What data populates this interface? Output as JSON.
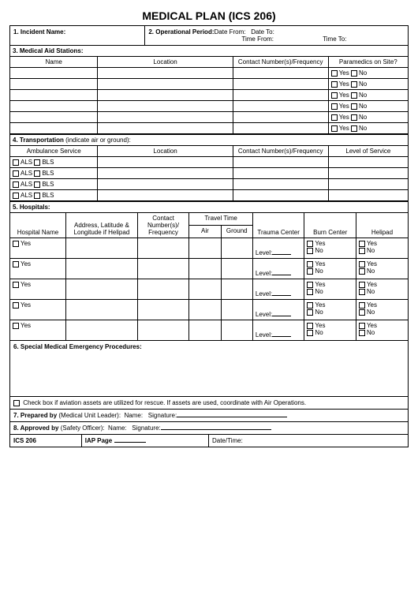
{
  "title": "MEDICAL PLAN (ICS 206)",
  "s1": {
    "label": "1. Incident Name:"
  },
  "s2": {
    "label": "2. Operational Period:",
    "dateFrom": "Date From:",
    "dateTo": "Date To:",
    "timeFrom": "Time From:",
    "timeTo": "Time To:"
  },
  "s3": {
    "label": "3. Medical Aid Stations:",
    "cols": {
      "name": "Name",
      "location": "Location",
      "contact": "Contact Number(s)/Frequency",
      "paramedics": "Paramedics on Site?"
    },
    "yes": "Yes",
    "no": "No",
    "rows": 6
  },
  "s4": {
    "label": "4. Transportation",
    "hint": " (indicate air or ground):",
    "cols": {
      "ambulance": "Ambulance Service",
      "location": "Location",
      "contact": "Contact Number(s)/Frequency",
      "level": "Level of Service"
    },
    "als": "ALS",
    "bls": "BLS",
    "rows": 4
  },
  "s5": {
    "label": "5. Hospitals:",
    "cols": {
      "name": "Hospital Name",
      "address": "Address, Latitude & Longitude if Helipad",
      "contact": "Contact Number(s)/ Frequency",
      "travel": "Travel Time",
      "air": "Air",
      "ground": "Ground",
      "trauma": "Trauma Center",
      "burn": "Burn Center",
      "helipad": "Helipad"
    },
    "yes": "Yes",
    "no": "No",
    "level": "Level:",
    "rows": 5
  },
  "s6": {
    "label": "6. Special Medical Emergency Procedures:",
    "aviation": "Check box if aviation assets are utilized for rescue.  If assets are used, coordinate with Air Operations."
  },
  "s7": {
    "label": "7. Prepared by",
    "role": " (Medical Unit Leader):",
    "name": "Name:",
    "sig": "Signature:"
  },
  "s8": {
    "label": "8. Approved by",
    "role": " (Safety Officer):",
    "name": "Name:",
    "sig": "Signature:"
  },
  "footer": {
    "ics": "ICS 206",
    "iap": "IAP Page",
    "datetime": "Date/Time:"
  }
}
